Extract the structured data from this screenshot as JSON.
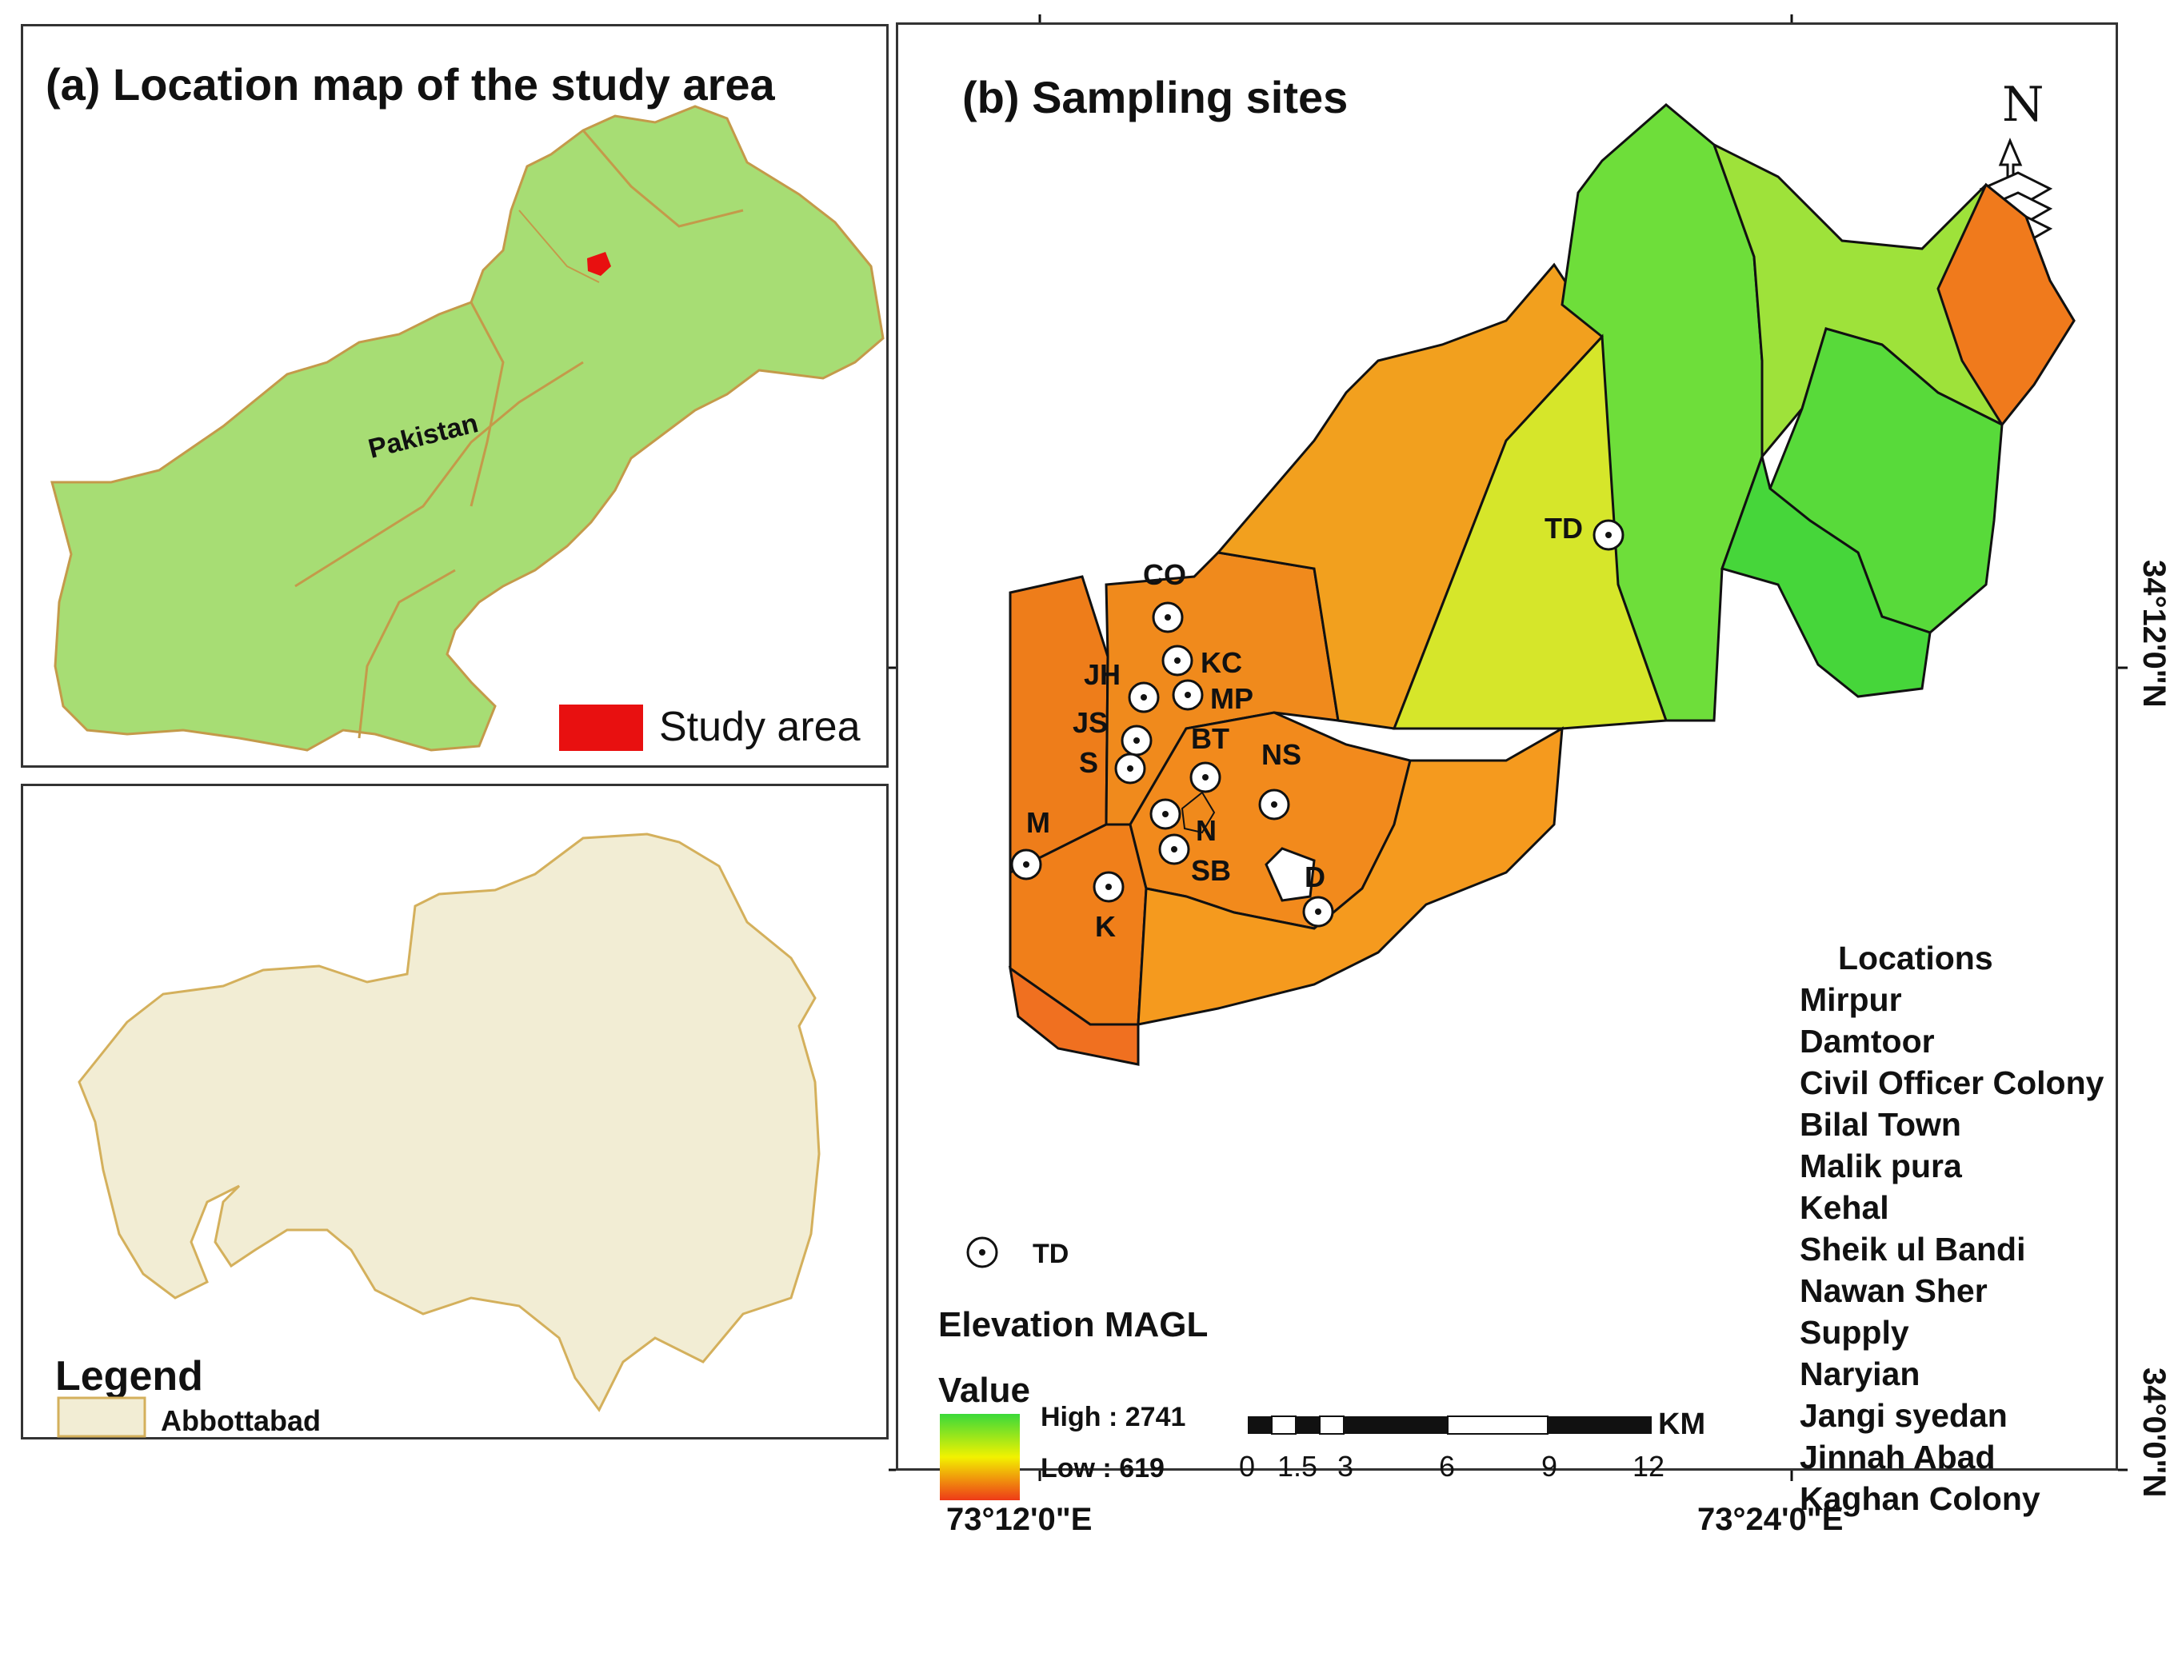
{
  "panel_a": {
    "title": "(a) Location map of the study area",
    "country_label": "Pakistan",
    "legend_label": "Study area",
    "colors": {
      "country_fill": "#a7dd74",
      "study_area": "#e81010"
    }
  },
  "abbottabad_panel": {
    "legend_title": "Legend",
    "legend_item": "Abbottabad",
    "colors": {
      "district_fill": "#f2edd4",
      "district_border": "#d4b05c"
    }
  },
  "panel_b": {
    "title": "(b) Sampling sites",
    "north_label": "N",
    "sites": [
      {
        "code": "CO"
      },
      {
        "code": "KC"
      },
      {
        "code": "JH"
      },
      {
        "code": "MP"
      },
      {
        "code": "JS"
      },
      {
        "code": "BT"
      },
      {
        "code": "S"
      },
      {
        "code": "NS"
      },
      {
        "code": "M"
      },
      {
        "code": "N"
      },
      {
        "code": "SB"
      },
      {
        "code": "D"
      },
      {
        "code": "K"
      },
      {
        "code": "TD"
      }
    ],
    "symbol_legend_label": "TD",
    "elevation_legend": {
      "title": "Elevation MAGL",
      "value_label": "Value",
      "high_label": "High : 2741",
      "low_label": "Low : 619",
      "colors": {
        "high": "#3ad93a",
        "mid": "#f2f200",
        "low": "#ee3a18"
      }
    },
    "scale_bar": {
      "unit": "KM",
      "ticks": [
        "0",
        "1.5",
        "3",
        "6",
        "9",
        "12"
      ]
    },
    "locations_title": "Locations",
    "locations": [
      "Mirpur",
      "Damtoor",
      "Civil Officer Colony",
      "Bilal Town",
      "Malik pura",
      "Kehal",
      "Sheik ul Bandi",
      "Nawan Sher",
      "Supply",
      "Naryian",
      "Jangi syedan",
      "Jinnah Abad",
      "Kaghan Colony"
    ]
  },
  "axes": {
    "x_ticks": [
      "73°12'0\"E",
      "73°24'0\"E"
    ],
    "y_ticks": [
      "34°12'0\"N",
      "34°0'0\"N"
    ]
  }
}
